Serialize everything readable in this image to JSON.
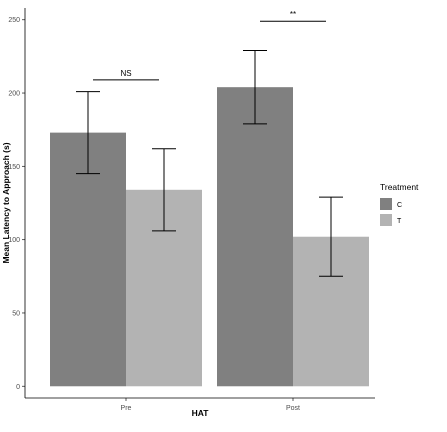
{
  "chart_data": {
    "type": "bar",
    "categories": [
      "Pre",
      "Post"
    ],
    "series": [
      {
        "name": "C",
        "color": "#808080",
        "values": [
          173,
          204
        ],
        "error_low": [
          145,
          179
        ],
        "error_high": [
          201,
          229
        ]
      },
      {
        "name": "T",
        "color": "#b3b3b3",
        "values": [
          134,
          102
        ],
        "error_low": [
          106,
          75
        ],
        "error_high": [
          162,
          129
        ]
      }
    ],
    "xlabel": "HAT",
    "ylabel": "Mean Latency to Approach (s)",
    "ylim": [
      -8,
      258
    ],
    "yticks": [
      0,
      50,
      100,
      150,
      200,
      250
    ],
    "grid": false,
    "legend": {
      "title": "Treatment",
      "position": "right"
    },
    "annotations": [
      {
        "category": "Pre",
        "label": "NS",
        "y": 209
      },
      {
        "category": "Post",
        "label": "**",
        "y": 249
      }
    ]
  }
}
